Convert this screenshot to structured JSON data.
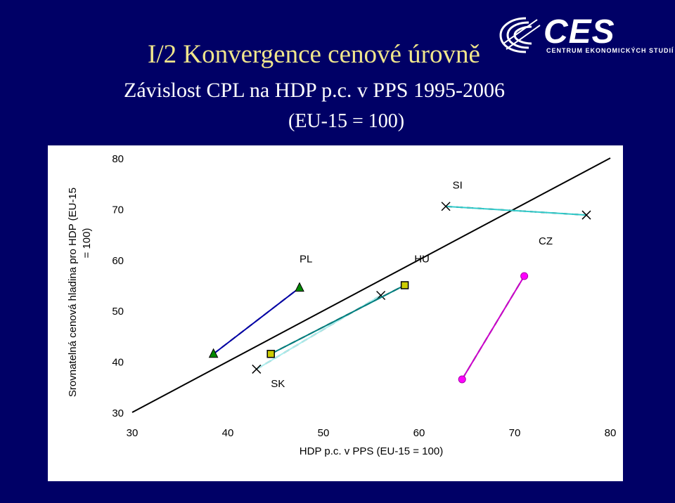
{
  "slide": {
    "title": "I/2 Konvergence cenové úrovně",
    "subtitle": "Závislost CPL na HDP p.c. v PPS 1995-2006",
    "subtitle2": "(EU-15 = 100)",
    "logo_text": "CES",
    "logo_subtext": "CENTRUM EKONOMICKÝCH STUDIÍ",
    "background_color": "#000066",
    "title_color": "#f0e68c"
  },
  "chart_data": {
    "type": "line",
    "xlabel": "HDP p.c. v PPS (EU-15 = 100)",
    "ylabel": "Srovnatelná cenová hladina pro HDP (EU-15 = 100)",
    "xlim": [
      30,
      80
    ],
    "ylim": [
      30,
      80
    ],
    "xticks": [
      "30",
      "40",
      "50",
      "60",
      "70",
      "80"
    ],
    "yticks": [
      "30",
      "40",
      "50",
      "60",
      "70",
      "80"
    ],
    "grid": false,
    "reference_line": {
      "x": [
        30,
        80
      ],
      "y": [
        30,
        80
      ],
      "color": "#000000"
    },
    "series": [
      {
        "name": "PL",
        "x": [
          38.5,
          47.5
        ],
        "y": [
          41.5,
          54.5
        ],
        "color": "#0000aa",
        "marker": "triangle",
        "marker_color": "#008800"
      },
      {
        "name": "SK",
        "x": [
          43.0,
          56.0
        ],
        "y": [
          38.5,
          53.0
        ],
        "color": "#aaeeee",
        "marker": "x",
        "marker_color": "#000000"
      },
      {
        "name": "HU",
        "x": [
          44.5,
          58.5
        ],
        "y": [
          41.5,
          55.0
        ],
        "color": "#008080",
        "marker": "square",
        "marker_color": "#cccc00"
      },
      {
        "name": "SI",
        "x": [
          62.8,
          77.5
        ],
        "y": [
          70.5,
          68.8
        ],
        "color": "#33cccc",
        "marker": "x",
        "marker_color": "#000000"
      },
      {
        "name": "CZ",
        "x": [
          64.5,
          71.0
        ],
        "y": [
          36.5,
          56.8
        ],
        "color": "#cc00cc",
        "marker": "circle",
        "marker_color": "#ff00ff"
      }
    ],
    "annotations": [
      {
        "text": "PL",
        "x": 47.5,
        "y": 59.5
      },
      {
        "text": "SK",
        "x": 44.5,
        "y": 35.0
      },
      {
        "text": "HU",
        "x": 59.5,
        "y": 59.5
      },
      {
        "text": "SI",
        "x": 63.5,
        "y": 74.0
      },
      {
        "text": "CZ",
        "x": 72.5,
        "y": 63.0
      }
    ]
  }
}
